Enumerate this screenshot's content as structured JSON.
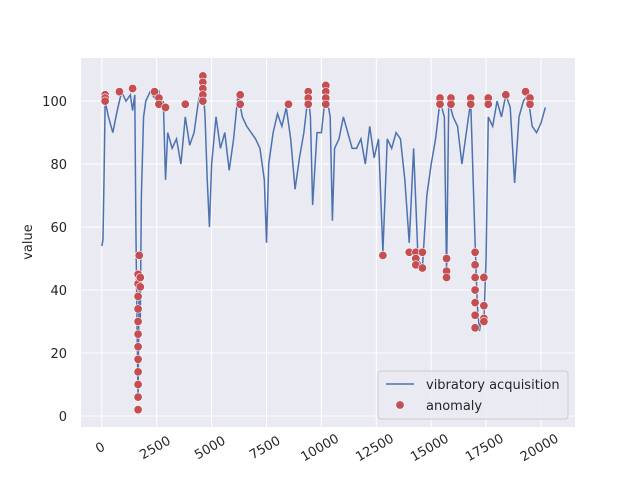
{
  "chart_data": {
    "type": "line",
    "y_label": "value",
    "xlim": [
      -950,
      21550
    ],
    "ylim": [
      -3.5,
      113.7
    ],
    "xticks": [
      0,
      2500,
      5000,
      7500,
      10000,
      12500,
      15000,
      17500,
      20000
    ],
    "yticks": [
      0,
      20,
      40,
      60,
      80,
      100
    ],
    "grid": true,
    "legend": "lower right",
    "series": [
      {
        "name": "vibratory acquisition",
        "color": "#4c72b0",
        "type": "line",
        "x": [
          0,
          50,
          100,
          150,
          300,
          500,
          700,
          900,
          1100,
          1300,
          1400,
          1500,
          1550,
          1600,
          1650,
          1700,
          1750,
          1800,
          1900,
          2000,
          2200,
          2400,
          2600,
          2700,
          2800,
          2900,
          3000,
          3200,
          3400,
          3600,
          3800,
          4000,
          4200,
          4400,
          4600,
          4700,
          4800,
          4900,
          5000,
          5200,
          5400,
          5600,
          5800,
          6000,
          6200,
          6400,
          6600,
          6800,
          7000,
          7200,
          7400,
          7500,
          7600,
          7800,
          8000,
          8200,
          8400,
          8600,
          8800,
          9000,
          9200,
          9400,
          9500,
          9600,
          9800,
          10000,
          10200,
          10400,
          10500,
          10600,
          10800,
          11000,
          11200,
          11400,
          11600,
          11800,
          12000,
          12200,
          12400,
          12600,
          12800,
          13000,
          13200,
          13400,
          13600,
          13800,
          14000,
          14200,
          14400,
          14600,
          14800,
          15000,
          15200,
          15400,
          15600,
          15700,
          15800,
          16000,
          16200,
          16400,
          16600,
          16800,
          17000,
          17100,
          17200,
          17300,
          17400,
          17500,
          17600,
          17800,
          18000,
          18200,
          18400,
          18600,
          18800,
          19000,
          19200,
          19400,
          19600,
          19800,
          20000,
          20200
        ],
        "values": [
          54,
          56,
          76,
          100,
          95,
          90,
          97,
          103,
          100,
          102,
          97,
          102,
          60,
          30,
          5,
          45,
          30,
          70,
          95,
          100,
          103,
          101,
          103,
          98,
          100,
          75,
          90,
          85,
          88,
          80,
          95,
          86,
          90,
          100,
          106,
          95,
          75,
          60,
          80,
          95,
          85,
          90,
          78,
          88,
          102,
          95,
          92,
          90,
          88,
          85,
          75,
          55,
          80,
          90,
          96,
          92,
          98,
          88,
          72,
          82,
          90,
          102,
          95,
          67,
          90,
          90,
          103,
          95,
          62,
          85,
          88,
          95,
          90,
          85,
          85,
          88,
          80,
          92,
          82,
          88,
          52,
          88,
          85,
          90,
          88,
          75,
          55,
          85,
          50,
          47,
          70,
          80,
          88,
          100,
          95,
          45,
          100,
          95,
          92,
          80,
          90,
          100,
          55,
          35,
          27,
          32,
          30,
          50,
          95,
          92,
          100,
          95,
          102,
          98,
          74,
          95,
          100,
          102,
          92,
          90,
          93,
          98
        ]
      },
      {
        "name": "anomaly",
        "color": "#c44e52",
        "type": "scatter",
        "x": [
          150,
          150,
          150,
          800,
          1400,
          1650,
          1650,
          1650,
          1650,
          1650,
          1650,
          1650,
          1650,
          1650,
          1650,
          1650,
          1650,
          1700,
          1750,
          1750,
          2400,
          2600,
          2600,
          2900,
          3800,
          4600,
          4600,
          4600,
          4600,
          4600,
          6300,
          6300,
          8500,
          9400,
          9400,
          9400,
          10200,
          10200,
          10200,
          10200,
          12800,
          14000,
          14300,
          14300,
          14300,
          14600,
          14600,
          15400,
          15400,
          15700,
          15700,
          15700,
          15900,
          15900,
          16800,
          16800,
          17000,
          17000,
          17000,
          17000,
          17000,
          17000,
          17000,
          17400,
          17400,
          17400,
          17400,
          17600,
          17600,
          18400,
          19300,
          19500,
          19500
        ],
        "values": [
          102,
          101,
          100,
          103,
          104,
          2,
          6,
          10,
          14,
          18,
          22,
          26,
          30,
          34,
          38,
          42,
          45,
          51,
          44,
          41,
          103,
          101,
          99,
          98,
          99,
          108,
          106,
          104,
          102,
          100,
          102,
          99,
          99,
          103,
          101,
          99,
          105,
          103,
          101,
          99,
          51,
          52,
          52,
          50,
          48,
          52,
          47,
          101,
          99,
          50,
          46,
          44,
          101,
          99,
          101,
          99,
          52,
          48,
          44,
          40,
          36,
          32,
          28,
          44,
          35,
          31,
          30,
          101,
          99,
          102,
          103,
          101,
          99
        ]
      }
    ]
  }
}
